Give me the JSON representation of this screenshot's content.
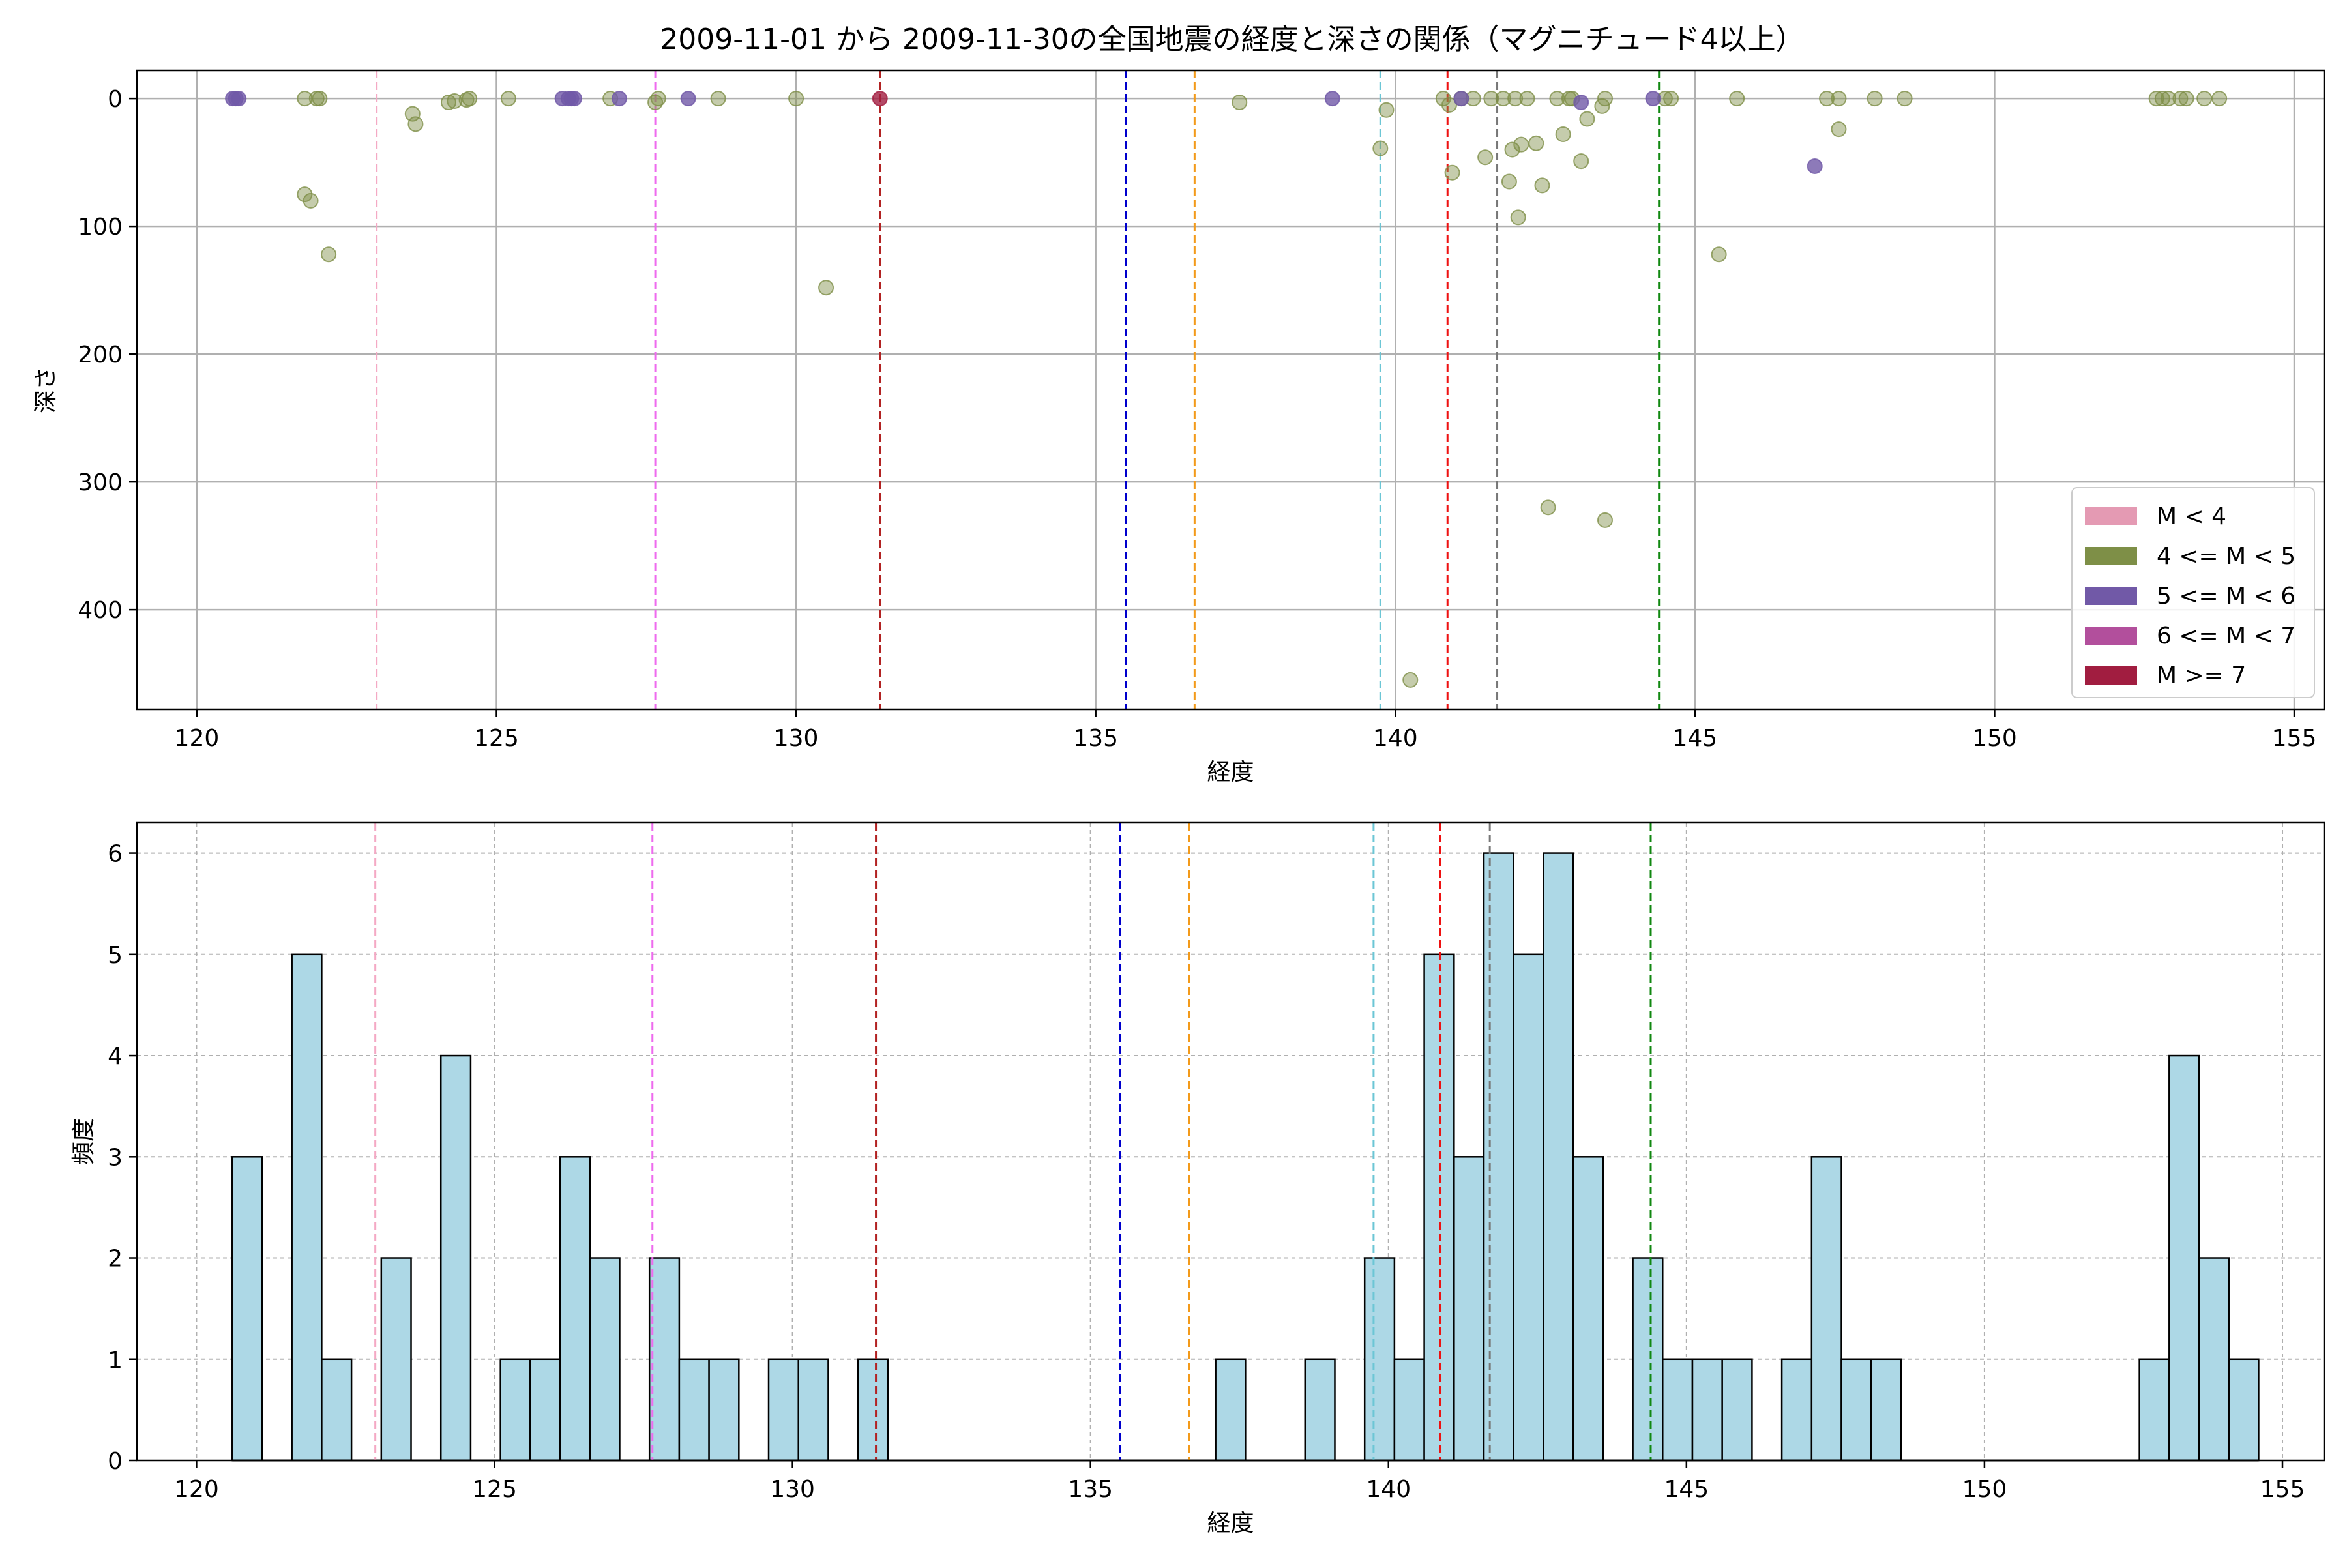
{
  "chart_data": [
    {
      "type": "scatter",
      "title": "2009-11-01 から 2009-11-30の全国地震の経度と深さの関係（マグニチュード4以上）",
      "xlabel": "経度",
      "ylabel": "深さ",
      "xlim": [
        119,
        155.5
      ],
      "ylim": [
        478,
        -22
      ],
      "y_inverted": true,
      "grid": true,
      "xticks": [
        120,
        125,
        130,
        135,
        140,
        145,
        150,
        155
      ],
      "yticks": [
        0,
        100,
        200,
        300,
        400
      ],
      "legend": {
        "placement": "bottom-right",
        "entries": [
          {
            "label": "M < 4",
            "color": "#e49ab3"
          },
          {
            "label": "4 <= M < 5",
            "color": "#7e8f47"
          },
          {
            "label": "5 <= M < 6",
            "color": "#7159a7"
          },
          {
            "label": "6 <= M < 7",
            "color": "#b24f9c"
          },
          {
            "label": "M >= 7",
            "color": "#a11d40"
          }
        ]
      },
      "vlines": [
        {
          "x": 123.0,
          "color": "#f4a9c4"
        },
        {
          "x": 127.65,
          "color": "#ee6bee"
        },
        {
          "x": 131.4,
          "color": "#b22222"
        },
        {
          "x": 135.5,
          "color": "#0000cc"
        },
        {
          "x": 136.65,
          "color": "#f39a1a"
        },
        {
          "x": 139.75,
          "color": "#6cc6d5"
        },
        {
          "x": 140.87,
          "color": "#ee1111"
        },
        {
          "x": 141.7,
          "color": "#777777"
        },
        {
          "x": 144.4,
          "color": "#118811"
        }
      ],
      "series": [
        {
          "name": "4 <= M < 5",
          "color": "#7e8f47",
          "points": [
            [
              121.8,
              0
            ],
            [
              122.0,
              0
            ],
            [
              122.05,
              0
            ],
            [
              121.8,
              75
            ],
            [
              121.9,
              80
            ],
            [
              122.2,
              122
            ],
            [
              123.6,
              12
            ],
            [
              123.65,
              20
            ],
            [
              124.2,
              3
            ],
            [
              124.3,
              2
            ],
            [
              124.5,
              1
            ],
            [
              124.55,
              0
            ],
            [
              125.2,
              0
            ],
            [
              126.9,
              0
            ],
            [
              127.65,
              3
            ],
            [
              127.7,
              0
            ],
            [
              128.7,
              0
            ],
            [
              130.0,
              0
            ],
            [
              130.5,
              148
            ],
            [
              137.4,
              3
            ],
            [
              139.75,
              39
            ],
            [
              139.85,
              9
            ],
            [
              140.25,
              455
            ],
            [
              140.8,
              0
            ],
            [
              140.9,
              5
            ],
            [
              140.95,
              58
            ],
            [
              141.1,
              0
            ],
            [
              141.3,
              0
            ],
            [
              141.5,
              46
            ],
            [
              141.6,
              0
            ],
            [
              141.8,
              0
            ],
            [
              141.9,
              65
            ],
            [
              141.95,
              40
            ],
            [
              142.0,
              0
            ],
            [
              142.1,
              36
            ],
            [
              142.05,
              93
            ],
            [
              142.2,
              0
            ],
            [
              142.35,
              35
            ],
            [
              142.45,
              68
            ],
            [
              142.55,
              320
            ],
            [
              142.7,
              0
            ],
            [
              142.8,
              28
            ],
            [
              142.9,
              0
            ],
            [
              142.95,
              0
            ],
            [
              143.1,
              49
            ],
            [
              143.2,
              16
            ],
            [
              143.5,
              0
            ],
            [
              143.45,
              6
            ],
            [
              143.5,
              330
            ],
            [
              144.5,
              0
            ],
            [
              144.6,
              0
            ],
            [
              145.4,
              122
            ],
            [
              145.7,
              0
            ],
            [
              147.2,
              0
            ],
            [
              147.4,
              24
            ],
            [
              147.4,
              0
            ],
            [
              148.0,
              0
            ],
            [
              148.5,
              0
            ],
            [
              152.7,
              0
            ],
            [
              152.8,
              0
            ],
            [
              152.9,
              0
            ],
            [
              153.1,
              0
            ],
            [
              153.2,
              0
            ],
            [
              153.5,
              0
            ],
            [
              153.75,
              0
            ]
          ]
        },
        {
          "name": "5 <= M < 6",
          "color": "#7159a7",
          "points": [
            [
              120.6,
              0
            ],
            [
              120.65,
              0
            ],
            [
              120.7,
              0
            ],
            [
              126.1,
              0
            ],
            [
              126.2,
              0
            ],
            [
              126.25,
              0
            ],
            [
              126.3,
              0
            ],
            [
              127.05,
              0
            ],
            [
              128.2,
              0
            ],
            [
              138.95,
              0
            ],
            [
              141.1,
              0
            ],
            [
              143.1,
              3
            ],
            [
              144.3,
              0
            ],
            [
              147.0,
              53
            ]
          ]
        },
        {
          "name": "M >= 7",
          "color": "#a11d40",
          "points": [
            [
              131.4,
              0
            ]
          ]
        }
      ]
    },
    {
      "type": "bar",
      "chart_kind": "histogram",
      "xlabel": "経度",
      "ylabel": "頻度",
      "xlim": [
        119,
        155.7
      ],
      "ylim": [
        0,
        6.3
      ],
      "grid": true,
      "bar_color": "#add8e6",
      "edge_color": "#000000",
      "bin_start": 120.6,
      "bin_width": 0.5,
      "values": [
        3,
        0,
        5,
        1,
        0,
        2,
        0,
        4,
        0,
        1,
        1,
        3,
        2,
        0,
        2,
        1,
        1,
        0,
        1,
        1,
        0,
        1,
        0,
        0,
        0,
        0,
        0,
        0,
        0,
        0,
        0,
        0,
        0,
        1,
        0,
        0,
        1,
        0,
        2,
        1,
        5,
        3,
        6,
        5,
        6,
        3,
        0,
        2,
        1,
        1,
        1,
        0,
        1,
        3,
        1,
        1,
        0,
        0,
        0,
        0,
        0,
        0,
        0,
        0,
        1,
        4,
        2,
        1
      ],
      "xticks": [
        120,
        125,
        130,
        135,
        140,
        145,
        150,
        155
      ],
      "yticks": [
        0,
        1,
        2,
        3,
        4,
        5,
        6
      ],
      "vlines": [
        {
          "x": 123.0,
          "color": "#f4a9c4"
        },
        {
          "x": 127.65,
          "color": "#ee6bee"
        },
        {
          "x": 131.4,
          "color": "#b22222"
        },
        {
          "x": 135.5,
          "color": "#0000cc"
        },
        {
          "x": 136.65,
          "color": "#f39a1a"
        },
        {
          "x": 139.75,
          "color": "#6cc6d5"
        },
        {
          "x": 140.87,
          "color": "#ee1111"
        },
        {
          "x": 141.7,
          "color": "#777777"
        },
        {
          "x": 144.4,
          "color": "#118811"
        }
      ]
    }
  ]
}
